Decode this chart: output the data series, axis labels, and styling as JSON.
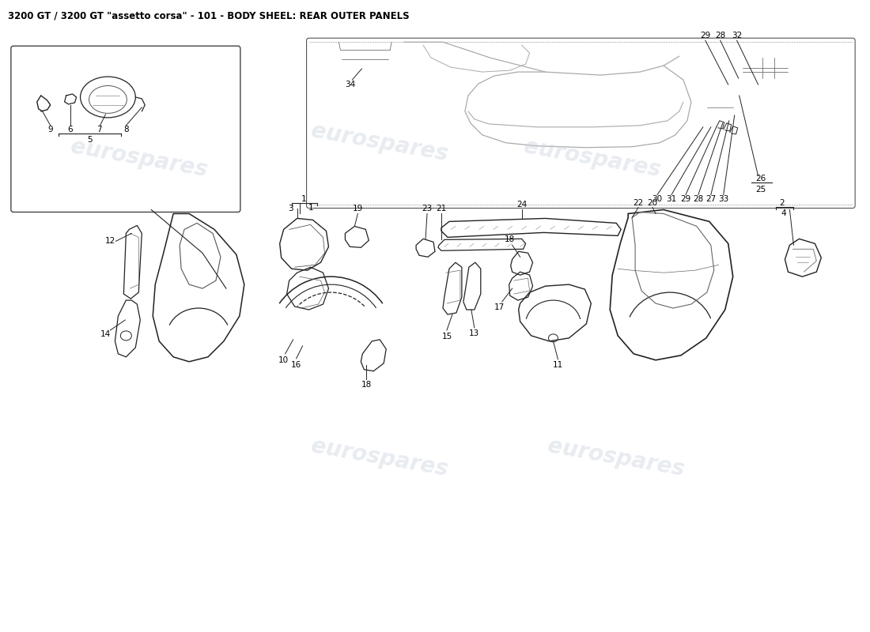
{
  "title": "3200 GT / 3200 GT \"assetto corsa\" - 101 - BODY SHEEL: REAR OUTER PANELS",
  "background_color": "#ffffff",
  "title_fontsize": 8.5,
  "title_color": "#000000",
  "watermark_text": "eurospares",
  "watermark_color": "#ccd5e0",
  "watermark_alpha": 0.45,
  "fig_width": 11.0,
  "fig_height": 8.0,
  "dpi": 100
}
